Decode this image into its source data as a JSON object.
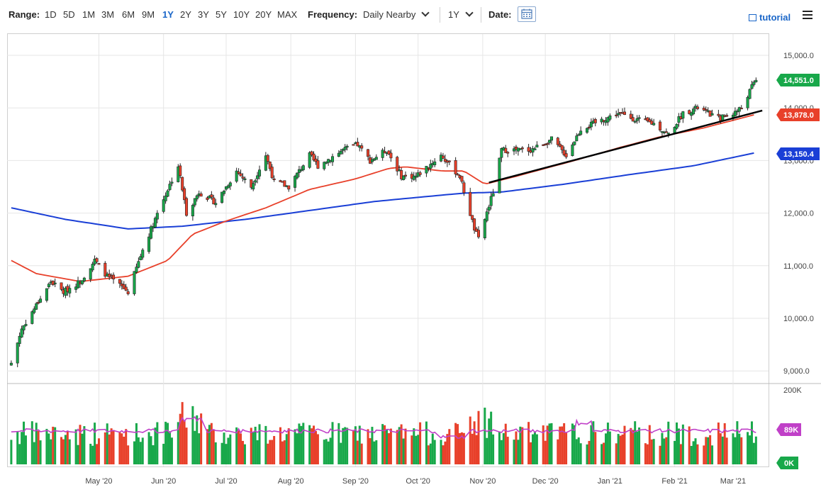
{
  "toolbar": {
    "range_label": "Range:",
    "ranges": [
      "1D",
      "5D",
      "1M",
      "3M",
      "6M",
      "9M",
      "1Y",
      "2Y",
      "3Y",
      "5Y",
      "10Y",
      "20Y",
      "MAX"
    ],
    "active_range": "1Y",
    "frequency_label": "Frequency:",
    "frequency_value": "Daily Nearby",
    "period_value": "1Y",
    "date_label": "Date:",
    "tutorial_label": "tutorial"
  },
  "colors": {
    "up": "#18a84a",
    "down": "#e8402a",
    "ma_red": "#e8402a",
    "ma_blue": "#1a3fd6",
    "trendline": "#000000",
    "volume_avg": "#c040c8",
    "price_badge": "#18a84a",
    "ma_red_badge": "#e8402a",
    "ma_blue_badge": "#1a3fd6",
    "vol_badge": "#c040c8",
    "zero_badge": "#18a84a"
  },
  "chart_data": {
    "type": "candlestick",
    "title": "",
    "price_axis": {
      "ticks": [
        "15,000.0",
        "14,000.0",
        "13,000.0",
        "12,000.0",
        "11,000.0",
        "10,000.0",
        "9,000.0"
      ],
      "ylim": [
        8950,
        15400
      ]
    },
    "volume_axis": {
      "ticks": [
        "200K"
      ],
      "ylim": [
        0,
        200000
      ]
    },
    "x_axis": {
      "ticks": [
        "May '20",
        "Jun '20",
        "Jul '20",
        "Aug '20",
        "Sep '20",
        "Oct '20",
        "Nov '20",
        "Dec '20",
        "Jan '21",
        "Feb '21",
        "Mar '21"
      ]
    },
    "badges": {
      "last_price": "14,551.0",
      "ma_red_value": "13,878.0",
      "ma_blue_value": "13,150.4",
      "volume_avg_value": "89K",
      "volume_zero": "0K"
    },
    "price_anchors": [
      [
        "2020-03-20",
        9150
      ],
      [
        "2020-03-25",
        9800
      ],
      [
        "2020-04-01",
        10250
      ],
      [
        "2020-04-08",
        10700
      ],
      [
        "2020-04-14",
        10500
      ],
      [
        "2020-04-22",
        10700
      ],
      [
        "2020-04-29",
        11100
      ],
      [
        "2020-05-05",
        10800
      ],
      [
        "2020-05-12",
        10600
      ],
      [
        "2020-05-15",
        10500
      ],
      [
        "2020-05-22",
        11300
      ],
      [
        "2020-05-29",
        12000
      ],
      [
        "2020-06-08",
        12900
      ],
      [
        "2020-06-12",
        12000
      ],
      [
        "2020-06-18",
        12400
      ],
      [
        "2020-06-26",
        12200
      ],
      [
        "2020-07-06",
        12800
      ],
      [
        "2020-07-13",
        12500
      ],
      [
        "2020-07-20",
        13100
      ],
      [
        "2020-07-24",
        12600
      ],
      [
        "2020-07-31",
        12500
      ],
      [
        "2020-08-10",
        13100
      ],
      [
        "2020-08-14",
        12900
      ],
      [
        "2020-08-26",
        13200
      ],
      [
        "2020-09-02",
        13300
      ],
      [
        "2020-09-08",
        13000
      ],
      [
        "2020-09-16",
        13200
      ],
      [
        "2020-09-23",
        12700
      ],
      [
        "2020-09-30",
        12700
      ],
      [
        "2020-10-06",
        12900
      ],
      [
        "2020-10-12",
        13100
      ],
      [
        "2020-10-21",
        12700
      ],
      [
        "2020-10-28",
        11700
      ],
      [
        "2020-10-30",
        11500
      ],
      [
        "2020-11-06",
        12400
      ],
      [
        "2020-11-10",
        13200
      ],
      [
        "2020-11-24",
        13200
      ],
      [
        "2020-12-04",
        13400
      ],
      [
        "2020-12-11",
        13100
      ],
      [
        "2020-12-18",
        13600
      ],
      [
        "2020-12-24",
        13700
      ],
      [
        "2021-01-05",
        13900
      ],
      [
        "2021-01-12",
        13800
      ],
      [
        "2021-01-22",
        13700
      ],
      [
        "2021-01-29",
        13500
      ],
      [
        "2021-02-05",
        13900
      ],
      [
        "2021-02-12",
        14000
      ],
      [
        "2021-02-22",
        13800
      ],
      [
        "2021-03-01",
        13900
      ],
      [
        "2021-03-05",
        14000
      ],
      [
        "2021-03-10",
        14400
      ],
      [
        "2021-03-12",
        14551
      ]
    ],
    "ma_red_anchors": [
      [
        "2020-03-20",
        11100
      ],
      [
        "2020-04-01",
        10850
      ],
      [
        "2020-04-22",
        10700
      ],
      [
        "2020-05-15",
        10800
      ],
      [
        "2020-06-03",
        11100
      ],
      [
        "2020-06-15",
        11600
      ],
      [
        "2020-07-01",
        11850
      ],
      [
        "2020-07-20",
        12100
      ],
      [
        "2020-08-10",
        12450
      ],
      [
        "2020-09-01",
        12650
      ],
      [
        "2020-09-17",
        12850
      ],
      [
        "2020-09-25",
        12880
      ],
      [
        "2020-10-13",
        12800
      ],
      [
        "2020-10-23",
        12800
      ],
      [
        "2020-11-02",
        12550
      ],
      [
        "2020-11-17",
        12700
      ],
      [
        "2020-12-15",
        13000
      ],
      [
        "2021-01-06",
        13250
      ],
      [
        "2021-01-25",
        13450
      ],
      [
        "2021-02-15",
        13620
      ],
      [
        "2021-03-12",
        13878
      ]
    ],
    "ma_blue_anchors": [
      [
        "2020-03-20",
        12100
      ],
      [
        "2020-04-15",
        11880
      ],
      [
        "2020-05-15",
        11700
      ],
      [
        "2020-06-10",
        11750
      ],
      [
        "2020-07-10",
        11880
      ],
      [
        "2020-08-10",
        12050
      ],
      [
        "2020-09-10",
        12220
      ],
      [
        "2020-10-01",
        12300
      ],
      [
        "2020-10-23",
        12380
      ],
      [
        "2020-11-10",
        12400
      ],
      [
        "2020-12-10",
        12550
      ],
      [
        "2021-01-10",
        12730
      ],
      [
        "2021-02-10",
        12900
      ],
      [
        "2021-03-12",
        13150
      ]
    ],
    "trendline": {
      "start": [
        "2020-11-04",
        12580
      ],
      "end": [
        "2021-03-15",
        13950
      ]
    },
    "volume_avg_k": 89
  }
}
